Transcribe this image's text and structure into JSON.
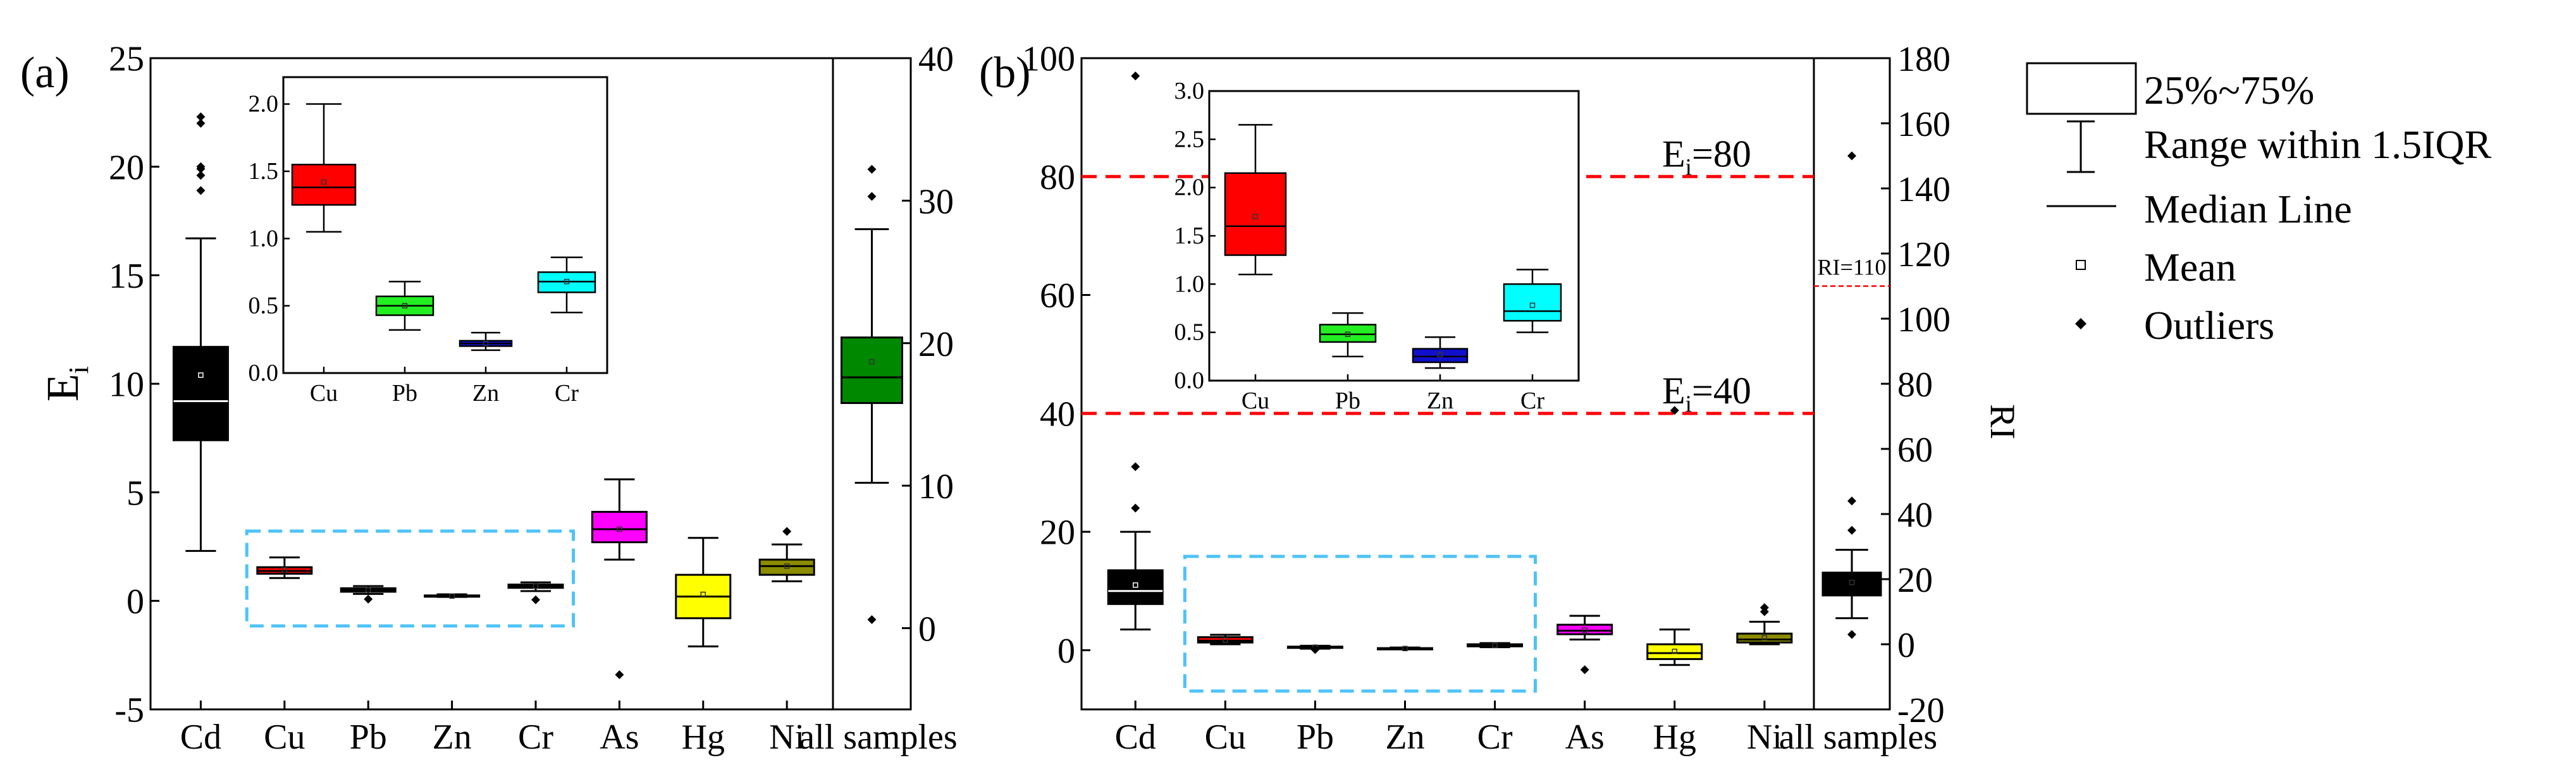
{
  "chart_data": [
    {
      "type": "box",
      "panel_label": "(a)",
      "ylabel": "E",
      "ylabel_sub": "i",
      "ylim": [
        -5,
        25
      ],
      "yticks": [
        -5,
        0,
        5,
        10,
        15,
        20,
        25
      ],
      "categories": [
        "Cd",
        "Cu",
        "Pb",
        "Zn",
        "Cr",
        "As",
        "Hg",
        "Ni"
      ],
      "boxes": [
        {
          "name": "Cd",
          "color": "#000000",
          "median_color": "#ffffff",
          "whisker_low": 2.3,
          "q1": 7.4,
          "median": 9.2,
          "q3": 11.7,
          "whisker_high": 16.7,
          "mean": 10.4,
          "outliers": [
            18.9,
            19.6,
            19.9,
            20.0,
            22.0,
            22.3
          ]
        },
        {
          "name": "Cu",
          "color": "#ff0000",
          "median_color": "#000000",
          "whisker_low": 1.05,
          "q1": 1.25,
          "median": 1.38,
          "q3": 1.55,
          "whisker_high": 2.0,
          "mean": 1.42,
          "outliers": []
        },
        {
          "name": "Pb",
          "color": "#22ee22",
          "median_color": "#000000",
          "whisker_low": 0.32,
          "q1": 0.42,
          "median": 0.5,
          "q3": 0.58,
          "whisker_high": 0.68,
          "mean": 0.5,
          "outliers": [
            0.08
          ]
        },
        {
          "name": "Zn",
          "color": "#1010cc",
          "median_color": "#000000",
          "whisker_low": 0.18,
          "q1": 0.2,
          "median": 0.22,
          "q3": 0.25,
          "whisker_high": 0.3,
          "mean": 0.22,
          "outliers": []
        },
        {
          "name": "Cr",
          "color": "#00ffff",
          "median_color": "#000000",
          "whisker_low": 0.45,
          "q1": 0.6,
          "median": 0.68,
          "q3": 0.75,
          "whisker_high": 0.85,
          "mean": 0.68,
          "outliers": [
            0.05
          ]
        },
        {
          "name": "As",
          "color": "#ff00ff",
          "median_color": "#000000",
          "whisker_low": 1.9,
          "q1": 2.7,
          "median": 3.3,
          "q3": 4.1,
          "whisker_high": 5.6,
          "mean": 3.3,
          "outliers": [
            -3.4
          ]
        },
        {
          "name": "Hg",
          "color": "#ffff00",
          "median_color": "#000000",
          "whisker_low": -2.1,
          "q1": -0.8,
          "median": 0.2,
          "q3": 1.2,
          "whisker_high": 2.9,
          "mean": 0.3,
          "outliers": []
        },
        {
          "name": "Ni",
          "color": "#8b8b00",
          "median_color": "#000000",
          "whisker_low": 0.9,
          "q1": 1.2,
          "median": 1.6,
          "q3": 1.9,
          "whisker_high": 2.6,
          "mean": 1.6,
          "outliers": [
            3.2
          ]
        }
      ],
      "right_axis": {
        "category": "all samples",
        "ylim": [
          -5.7,
          40
        ],
        "yticks": [
          0,
          10,
          20,
          30,
          40
        ],
        "box": {
          "name": "all samples",
          "color": "#008800",
          "median_color": "#000000",
          "whisker_low": 10.2,
          "q1": 15.8,
          "median": 17.6,
          "q3": 20.4,
          "whisker_high": 28.0,
          "mean": 18.7,
          "outliers": [
            0.6,
            30.3,
            32.2
          ]
        }
      },
      "inset": {
        "categories": [
          "Cu",
          "Pb",
          "Zn",
          "Cr"
        ],
        "ylim": [
          0,
          2.2
        ],
        "yticks": [
          "0.0",
          "0.5",
          "1.0",
          "1.5",
          "2.0"
        ],
        "ytick_values": [
          0,
          0.5,
          1.0,
          1.5,
          2.0
        ],
        "boxes": [
          {
            "name": "Cu",
            "color": "#ff0000",
            "whisker_low": 1.05,
            "q1": 1.25,
            "median": 1.38,
            "q3": 1.55,
            "whisker_high": 2.0,
            "mean": 1.42,
            "outliers": []
          },
          {
            "name": "Pb",
            "color": "#22ee22",
            "whisker_low": 0.32,
            "q1": 0.43,
            "median": 0.5,
            "q3": 0.57,
            "whisker_high": 0.68,
            "mean": 0.5,
            "outliers": []
          },
          {
            "name": "Zn",
            "color": "#1010cc",
            "whisker_low": 0.17,
            "q1": 0.2,
            "median": 0.22,
            "q3": 0.24,
            "whisker_high": 0.3,
            "mean": 0.22,
            "outliers": []
          },
          {
            "name": "Cr",
            "color": "#00ffff",
            "whisker_low": 0.45,
            "q1": 0.6,
            "median": 0.68,
            "q3": 0.75,
            "whisker_high": 0.86,
            "mean": 0.68,
            "outliers": []
          }
        ]
      }
    },
    {
      "type": "box",
      "panel_label": "(b)",
      "ylabel": "",
      "ylim": [
        -10,
        100
      ],
      "yticks": [
        0,
        20,
        40,
        60,
        80,
        100
      ],
      "categories": [
        "Cd",
        "Cu",
        "Pb",
        "Zn",
        "Cr",
        "As",
        "Hg",
        "Ni"
      ],
      "reference_lines": [
        {
          "value": 80,
          "label": "E",
          "label_sub": "i",
          "label_rest": "=80",
          "color": "#ff0000"
        },
        {
          "value": 40,
          "label": "E",
          "label_sub": "i",
          "label_rest": "=40",
          "color": "#ff0000"
        }
      ],
      "boxes": [
        {
          "name": "Cd",
          "color": "#000000",
          "median_color": "#ffffff",
          "whisker_low": 3.5,
          "q1": 7.8,
          "median": 10.0,
          "q3": 13.5,
          "whisker_high": 20.0,
          "mean": 11.0,
          "outliers": [
            24.0,
            31.0,
            97.0
          ]
        },
        {
          "name": "Cu",
          "color": "#ff0000",
          "median_color": "#000000",
          "whisker_low": 1.0,
          "q1": 1.3,
          "median": 1.6,
          "q3": 2.2,
          "whisker_high": 2.6,
          "mean": 1.7,
          "outliers": []
        },
        {
          "name": "Pb",
          "color": "#22ee22",
          "median_color": "#000000",
          "whisker_low": 0.25,
          "q1": 0.4,
          "median": 0.5,
          "q3": 0.6,
          "whisker_high": 0.75,
          "mean": 0.5,
          "outliers": [
            0.1
          ]
        },
        {
          "name": "Zn",
          "color": "#1010cc",
          "median_color": "#000000",
          "whisker_low": 0.15,
          "q1": 0.2,
          "median": 0.25,
          "q3": 0.35,
          "whisker_high": 0.45,
          "mean": 0.28,
          "outliers": []
        },
        {
          "name": "Cr",
          "color": "#00ffff",
          "median_color": "#000000",
          "whisker_low": 0.5,
          "q1": 0.65,
          "median": 0.75,
          "q3": 1.0,
          "whisker_high": 1.2,
          "mean": 0.8,
          "outliers": []
        },
        {
          "name": "As",
          "color": "#ff00ff",
          "median_color": "#000000",
          "whisker_low": 1.8,
          "q1": 2.7,
          "median": 3.3,
          "q3": 4.3,
          "whisker_high": 5.8,
          "mean": 3.4,
          "outliers": [
            -3.3
          ]
        },
        {
          "name": "Hg",
          "color": "#ffff00",
          "median_color": "#000000",
          "whisker_low": -2.5,
          "q1": -1.5,
          "median": -0.5,
          "q3": 1.0,
          "whisker_high": 3.5,
          "mean": -0.2,
          "outliers": [
            40.5
          ]
        },
        {
          "name": "Ni",
          "color": "#8b8b00",
          "median_color": "#000000",
          "whisker_low": 1.0,
          "q1": 1.3,
          "median": 1.8,
          "q3": 2.8,
          "whisker_high": 4.8,
          "mean": 2.1,
          "outliers": [
            6.5,
            7.2
          ]
        }
      ],
      "right_axis": {
        "category": "all samples",
        "ylim": [
          -20,
          180
        ],
        "yticks": [
          -20,
          0,
          20,
          40,
          60,
          80,
          100,
          120,
          140,
          160,
          180
        ],
        "ylabel": "RI",
        "reference_line": {
          "value": 110,
          "label": "RI=110",
          "color": "#ff0000"
        },
        "box": {
          "name": "all samples",
          "color": "#000000",
          "median_color": "#000000",
          "whisker_low": 8.0,
          "q1": 15.0,
          "median": 18.0,
          "q3": 22.0,
          "whisker_high": 29.0,
          "mean": 19.0,
          "outliers": [
            3.0,
            35.0,
            44.0,
            150.0
          ]
        }
      },
      "inset": {
        "categories": [
          "Cu",
          "Pb",
          "Zn",
          "Cr"
        ],
        "ylim": [
          0,
          3.0
        ],
        "yticks": [
          "0.0",
          "0.5",
          "1.0",
          "1.5",
          "2.0",
          "2.5",
          "3.0"
        ],
        "ytick_values": [
          0,
          0.5,
          1.0,
          1.5,
          2.0,
          2.5,
          3.0
        ],
        "boxes": [
          {
            "name": "Cu",
            "color": "#ff0000",
            "whisker_low": 1.1,
            "q1": 1.3,
            "median": 1.6,
            "q3": 2.15,
            "whisker_high": 2.65,
            "mean": 1.7,
            "outliers": []
          },
          {
            "name": "Pb",
            "color": "#22ee22",
            "whisker_low": 0.25,
            "q1": 0.4,
            "median": 0.48,
            "q3": 0.58,
            "whisker_high": 0.7,
            "mean": 0.48,
            "outliers": []
          },
          {
            "name": "Zn",
            "color": "#1010cc",
            "whisker_low": 0.13,
            "q1": 0.19,
            "median": 0.25,
            "q3": 0.33,
            "whisker_high": 0.45,
            "mean": 0.27,
            "outliers": []
          },
          {
            "name": "Cr",
            "color": "#00ffff",
            "whisker_low": 0.5,
            "q1": 0.62,
            "median": 0.72,
            "q3": 1.0,
            "whisker_high": 1.15,
            "mean": 0.78,
            "outliers": []
          }
        ]
      }
    }
  ],
  "legend": {
    "items": [
      {
        "kind": "box",
        "label": "25%~75%"
      },
      {
        "kind": "whisker",
        "label": "Range within 1.5IQR"
      },
      {
        "kind": "median",
        "label": "Median Line"
      },
      {
        "kind": "mean",
        "label": "Mean"
      },
      {
        "kind": "outlier",
        "label": "Outliers"
      }
    ]
  },
  "colors": {
    "highlight_box": "#4fc3f7",
    "reference": "#ff0000"
  }
}
